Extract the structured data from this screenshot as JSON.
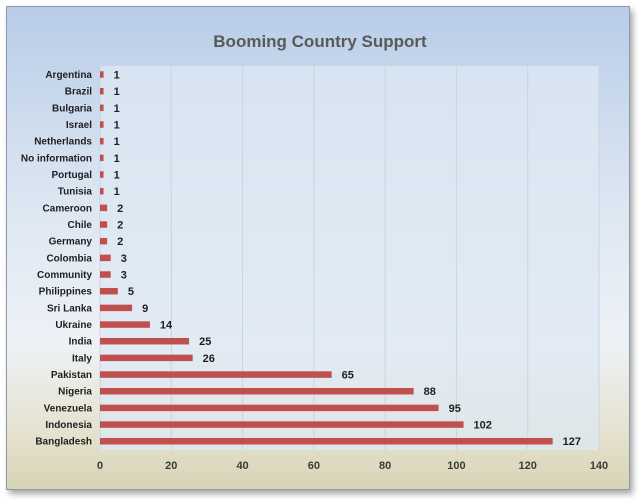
{
  "chart_data": {
    "type": "bar",
    "orientation": "horizontal",
    "title": "Booming Country Support",
    "xlabel": "",
    "ylabel": "",
    "xlim": [
      0,
      140
    ],
    "x_ticks": [
      "0",
      "20",
      "40",
      "60",
      "80",
      "100",
      "120",
      "140"
    ],
    "grid": "vertical",
    "legend": "none",
    "bar_color": "#c0504d",
    "categories": [
      "Argentina",
      "Brazil",
      "Bulgaria",
      "Israel",
      "Netherlands",
      "No information",
      "Portugal",
      "Tunisia",
      "Cameroon",
      "Chile",
      "Germany",
      "Colombia",
      "Community",
      "Philippines",
      "Sri Lanka",
      "Ukraine",
      "India",
      "Italy",
      "Pakistan",
      "Nigeria",
      "Venezuela",
      "Indonesia",
      "Bangladesh"
    ],
    "values": [
      1,
      1,
      1,
      1,
      1,
      1,
      1,
      1,
      2,
      2,
      2,
      3,
      3,
      5,
      9,
      14,
      25,
      26,
      65,
      88,
      95,
      102,
      127
    ]
  }
}
